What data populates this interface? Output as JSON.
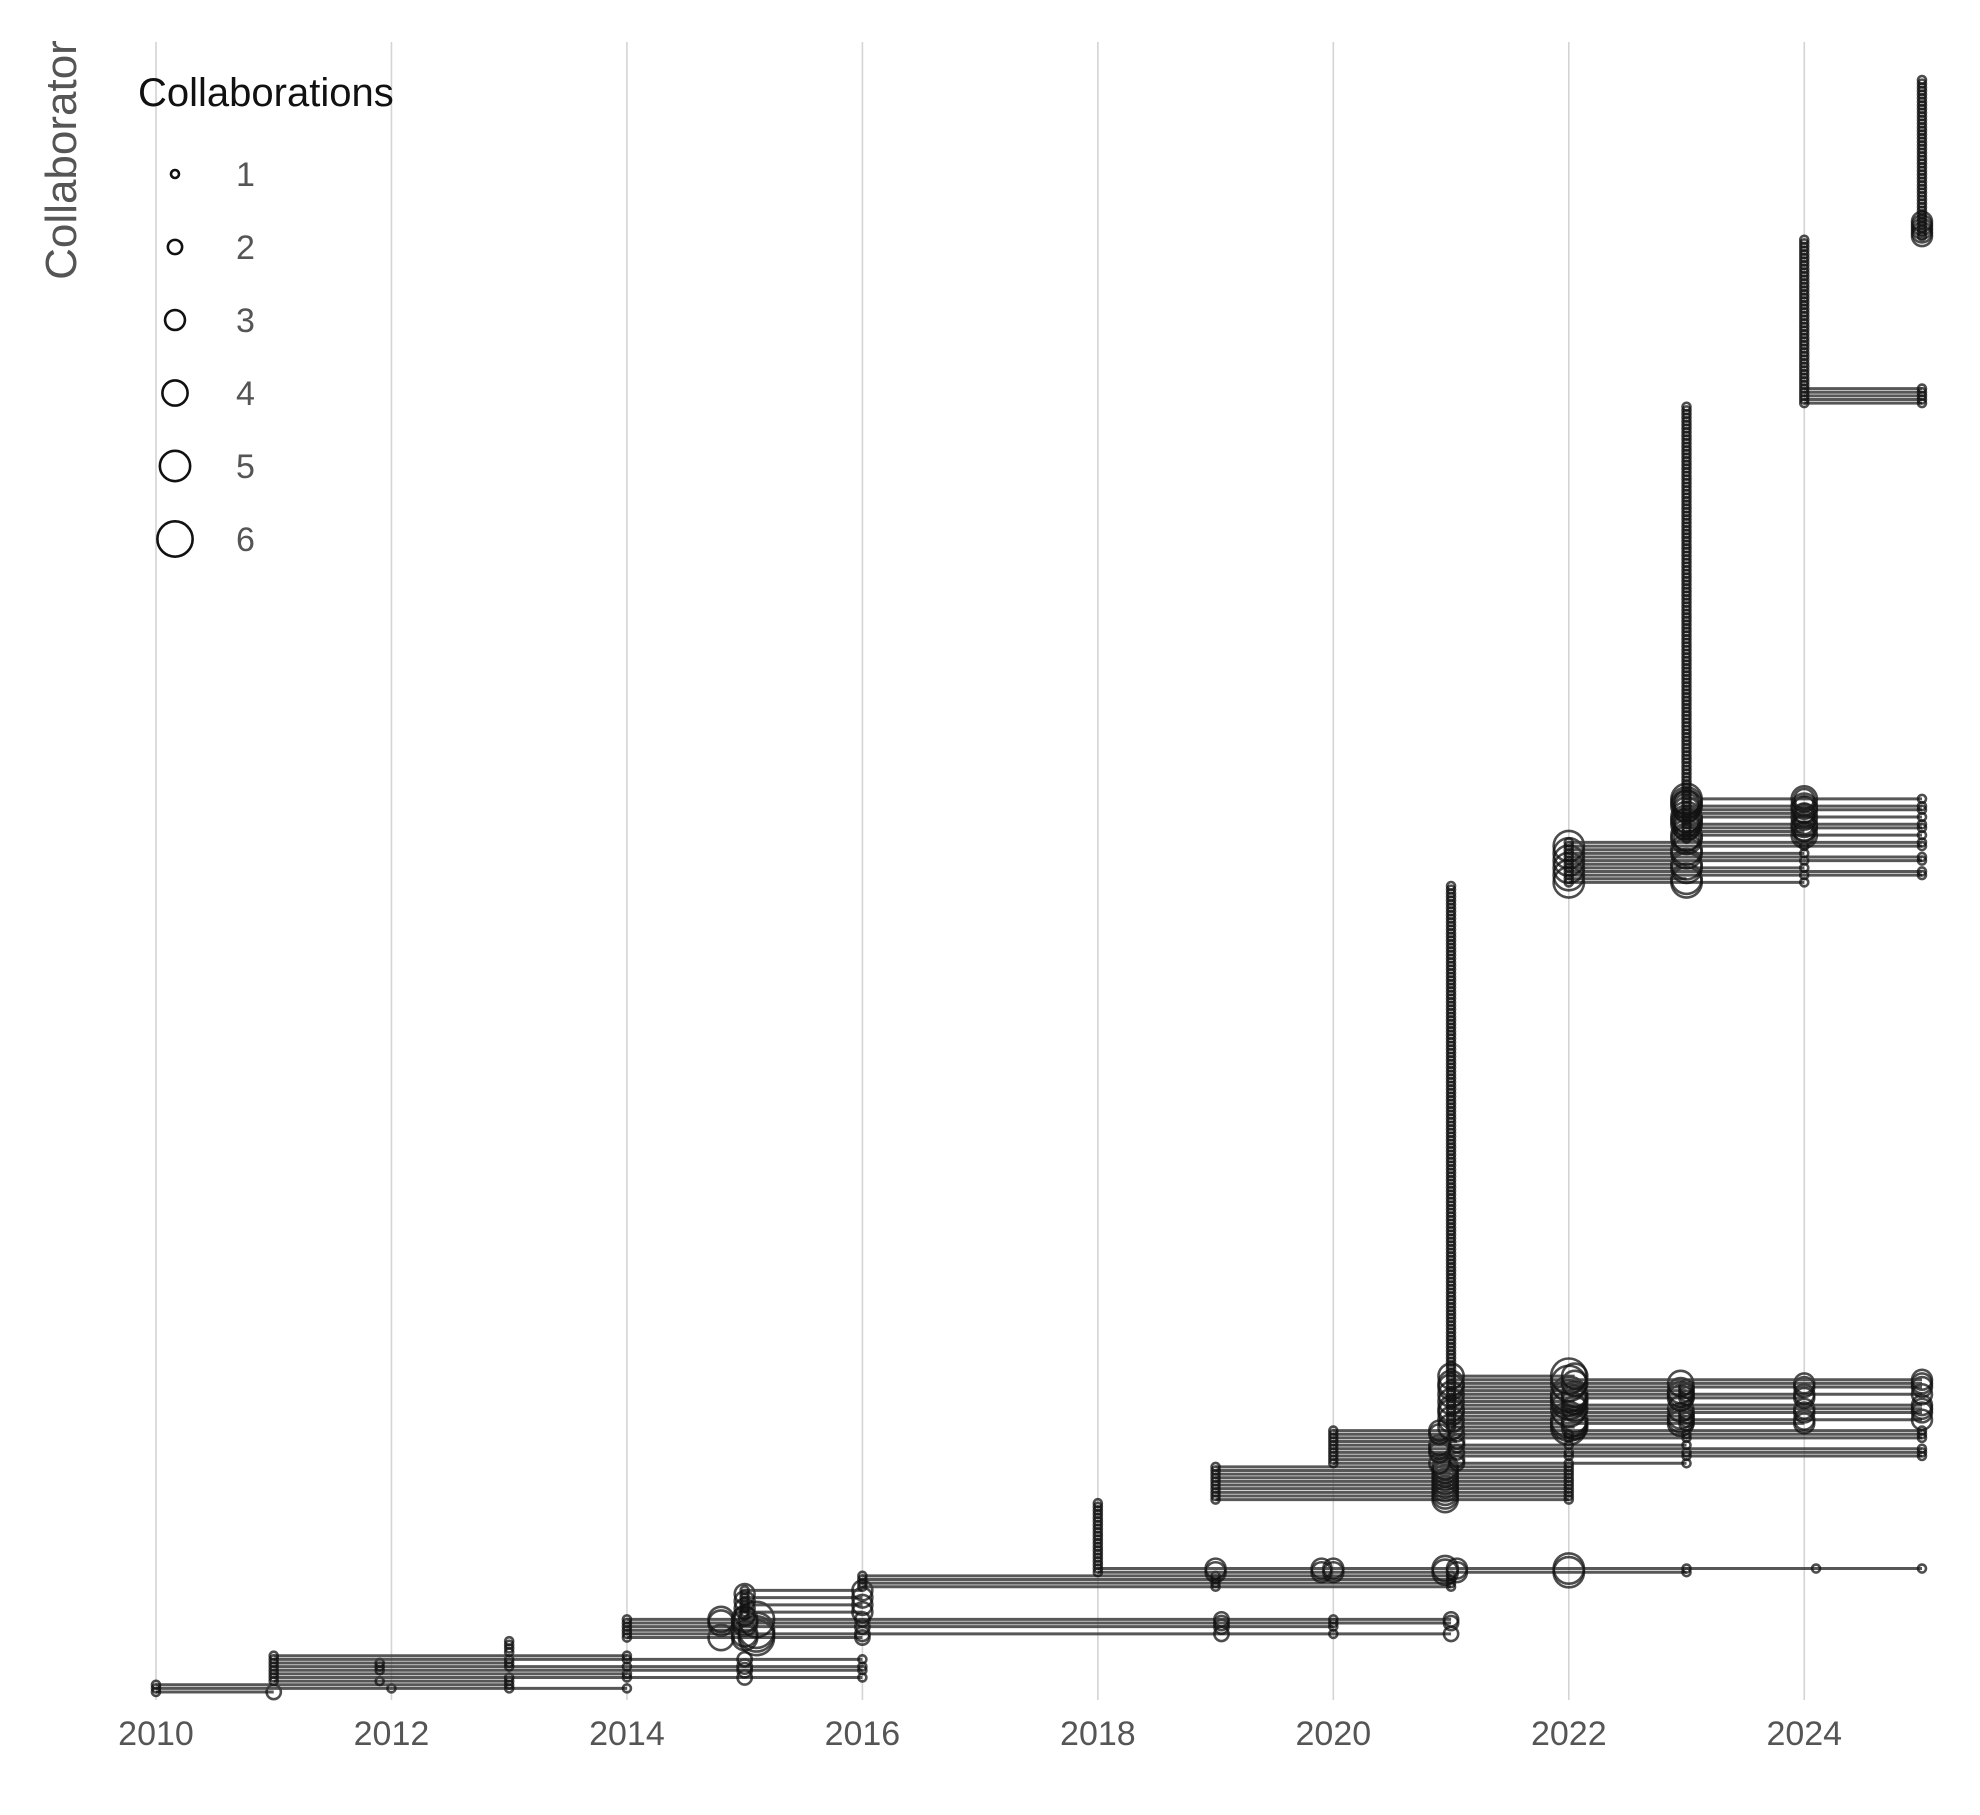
{
  "chart_data": {
    "type": "scatter",
    "title": "",
    "xlabel": "",
    "ylabel": "Collaborator",
    "xlim": [
      2010,
      2025
    ],
    "x_ticks": [
      2010,
      2012,
      2014,
      2016,
      2018,
      2020,
      2022,
      2024
    ],
    "grid": "vertical major gridlines only",
    "legend": {
      "title": "Collaborations",
      "placement": "top-left",
      "sizes": [
        1,
        2,
        3,
        4,
        5,
        6
      ]
    },
    "n_collaborators": 445,
    "series": [
      {
        "first": 2010,
        "count": 3,
        "extra": [
          [
            2011,
            2
          ],
          [
            2012,
            1
          ],
          [
            2013,
            1
          ],
          [
            2014,
            1
          ]
        ]
      },
      {
        "first": 2011,
        "count": 8,
        "extra": [
          [
            2011.9,
            1
          ],
          [
            2013,
            1
          ],
          [
            2014,
            1
          ],
          [
            2015,
            2
          ],
          [
            2016,
            1
          ]
        ]
      },
      {
        "first": 2013,
        "count": 4,
        "extra": []
      },
      {
        "first": 2014,
        "count": 6,
        "extra": [
          [
            2014.8,
            4
          ],
          [
            2015,
            4
          ],
          [
            2015.1,
            6
          ],
          [
            2016,
            2
          ],
          [
            2019.05,
            2
          ],
          [
            2020,
            1
          ],
          [
            2021,
            2
          ]
        ]
      },
      {
        "first": 2015,
        "count": 8,
        "extra": [
          [
            2015,
            3
          ],
          [
            2016,
            3
          ]
        ]
      },
      {
        "first": 2016,
        "count": 4,
        "extra": [
          [
            2019,
            1
          ],
          [
            2021,
            1
          ]
        ]
      },
      {
        "first": 2018,
        "count": 20,
        "extra": [
          [
            2019,
            3
          ],
          [
            2019.9,
            3
          ],
          [
            2020,
            3
          ],
          [
            2020.95,
            4
          ],
          [
            2021.05,
            3
          ],
          [
            2022,
            5
          ],
          [
            2023,
            1
          ],
          [
            2024.1,
            1
          ],
          [
            2025,
            1
          ]
        ]
      },
      {
        "first": 2019,
        "count": 10,
        "extra": [
          [
            2020.95,
            4
          ],
          [
            2022,
            1
          ]
        ]
      },
      {
        "first": 2020,
        "count": 10,
        "extra": [
          [
            2020.9,
            3
          ],
          [
            2021.05,
            2
          ],
          [
            2022,
            1
          ],
          [
            2023,
            1
          ],
          [
            2025,
            1
          ]
        ]
      },
      {
        "first": 2021,
        "count": 150,
        "extra": [
          [
            2021,
            4
          ],
          [
            2022,
            6
          ],
          [
            2022.05,
            4
          ],
          [
            2022.95,
            4
          ],
          [
            2023,
            2
          ],
          [
            2024,
            3
          ],
          [
            2025,
            3
          ]
        ]
      },
      {
        "first": 2022,
        "count": 12,
        "extra": [
          [
            2022,
            5
          ],
          [
            2023,
            5
          ],
          [
            2024,
            1
          ],
          [
            2025,
            1
          ]
        ]
      },
      {
        "first": 2023,
        "count": 120,
        "extra": [
          [
            2023,
            4
          ],
          [
            2023,
            5
          ],
          [
            2024,
            3
          ],
          [
            2024,
            4
          ],
          [
            2025,
            1
          ]
        ]
      },
      {
        "first": 2024,
        "count": 46,
        "extra": [
          [
            2025,
            1
          ]
        ]
      },
      {
        "first": 2025,
        "count": 44,
        "extra": [
          [
            2025,
            3
          ]
        ]
      }
    ]
  }
}
